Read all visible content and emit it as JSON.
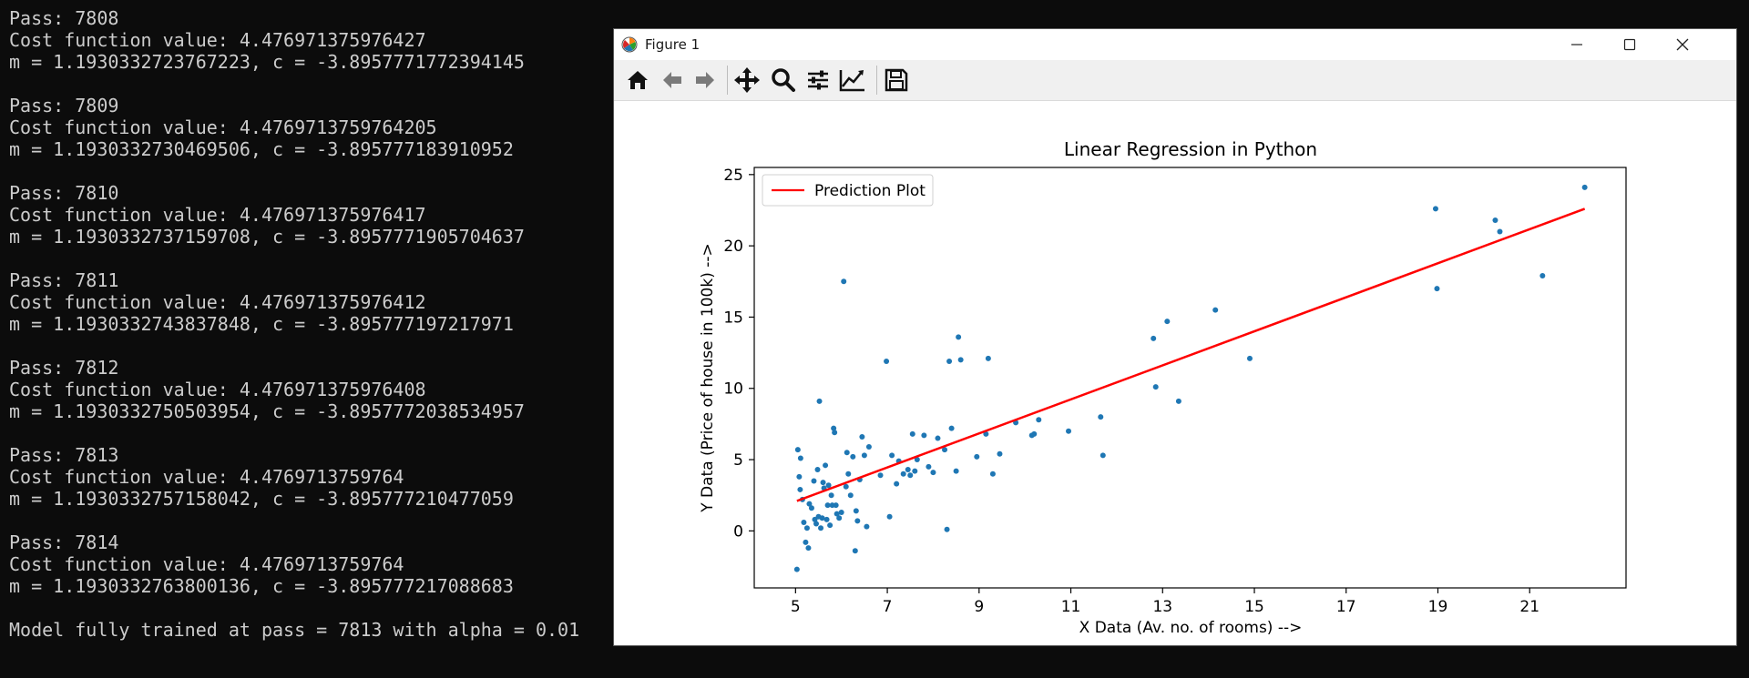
{
  "terminal": {
    "blocks": [
      {
        "pass": "Pass: 7808",
        "cost": "Cost function value: 4.476971375976427",
        "params": "m = 1.1930332723767223, c = -3.8957771772394145"
      },
      {
        "pass": "Pass: 7809",
        "cost": "Cost function value: 4.4769713759764205",
        "params": "m = 1.1930332730469506, c = -3.895777183910952"
      },
      {
        "pass": "Pass: 7810",
        "cost": "Cost function value: 4.476971375976417",
        "params": "m = 1.1930332737159708, c = -3.8957771905704637"
      },
      {
        "pass": "Pass: 7811",
        "cost": "Cost function value: 4.476971375976412",
        "params": "m = 1.1930332743837848, c = -3.895777197217971"
      },
      {
        "pass": "Pass: 7812",
        "cost": "Cost function value: 4.476971375976408",
        "params": "m = 1.1930332750503954, c = -3.8957772038534957"
      },
      {
        "pass": "Pass: 7813",
        "cost": "Cost function value: 4.4769713759764",
        "params": "m = 1.1930332757158042, c = -3.895777210477059"
      },
      {
        "pass": "Pass: 7814",
        "cost": "Cost function value: 4.4769713759764",
        "params": "m = 1.1930332763800136, c = -3.895777217088683"
      }
    ],
    "final_message": "Model fully trained at pass = 7813 with alpha = 0.01"
  },
  "window": {
    "title": "Figure 1",
    "icons": {
      "app": "matplotlib-icon",
      "minimize": "minimize-icon",
      "maximize": "maximize-icon",
      "close": "close-icon"
    }
  },
  "toolbar": {
    "buttons": [
      "home-icon",
      "back-arrow-icon",
      "forward-arrow-icon",
      "pan-move-icon",
      "zoom-magnifier-icon",
      "subplots-config-icon",
      "edit-axis-icon",
      "save-floppy-icon"
    ]
  },
  "chart_data": {
    "type": "scatter",
    "title": "Linear Regression in Python",
    "xlabel": "X Data (Av. no. of rooms) -->",
    "ylabel": "Y Data (Price of house in 100k) -->",
    "xlim": [
      4.1,
      23.1
    ],
    "ylim": [
      -4,
      25.5
    ],
    "xticks": [
      5,
      7,
      9,
      11,
      13,
      15,
      17,
      19,
      21
    ],
    "yticks": [
      0,
      5,
      10,
      15,
      20,
      25
    ],
    "legend": {
      "position": "top-left",
      "entries": [
        "Prediction Plot"
      ]
    },
    "grid": false,
    "series": [
      {
        "kind": "line",
        "name": "Prediction Plot",
        "color": "#ff0000",
        "x": [
          5.03,
          22.2
        ],
        "y": [
          2.1,
          22.6
        ]
      },
      {
        "kind": "scatter",
        "color": "#1f77b4",
        "x": [
          5.03,
          5.05,
          5.08,
          5.1,
          5.11,
          5.15,
          5.18,
          5.22,
          5.25,
          5.28,
          5.3,
          5.35,
          5.4,
          5.42,
          5.45,
          5.48,
          5.5,
          5.52,
          5.55,
          5.58,
          5.6,
          5.62,
          5.65,
          5.68,
          5.7,
          5.72,
          5.75,
          5.78,
          5.8,
          5.83,
          5.85,
          5.88,
          5.9,
          5.95,
          6.0,
          6.05,
          6.1,
          6.15,
          6.2,
          6.25,
          6.3,
          6.32,
          6.35,
          6.4,
          6.45,
          6.5,
          6.55,
          6.6,
          6.12,
          6.85,
          6.98,
          7.05,
          7.1,
          7.2,
          7.25,
          7.35,
          7.45,
          7.5,
          7.55,
          7.6,
          7.65,
          7.8,
          7.9,
          8.0,
          8.1,
          8.25,
          8.3,
          8.35,
          8.4,
          8.5,
          8.55,
          8.6,
          8.95,
          9.15,
          9.2,
          9.3,
          9.45,
          9.8,
          10.15,
          10.2,
          10.3,
          10.95,
          11.65,
          11.7,
          12.8,
          12.85,
          13.1,
          13.35,
          14.15,
          14.9,
          18.95,
          18.98,
          20.25,
          20.35,
          21.28,
          22.2
        ],
        "y": [
          -2.7,
          5.7,
          3.8,
          2.9,
          5.1,
          2.2,
          0.6,
          -0.8,
          0.2,
          -1.2,
          1.9,
          1.6,
          3.5,
          0.8,
          0.5,
          4.3,
          1.0,
          9.1,
          0.2,
          0.9,
          3.4,
          3.0,
          4.6,
          0.8,
          1.8,
          3.2,
          0.4,
          2.5,
          1.8,
          7.2,
          6.9,
          1.8,
          1.2,
          0.9,
          1.3,
          17.5,
          3.1,
          4.0,
          2.5,
          5.2,
          -1.4,
          1.4,
          0.7,
          3.6,
          6.6,
          5.3,
          0.3,
          5.9,
          5.5,
          3.9,
          11.9,
          1.0,
          5.3,
          3.3,
          4.9,
          4.0,
          4.3,
          3.9,
          6.8,
          4.2,
          5.0,
          6.7,
          4.5,
          4.1,
          6.5,
          5.7,
          0.1,
          11.9,
          7.2,
          4.2,
          13.6,
          12.0,
          5.2,
          6.8,
          12.1,
          4.0,
          5.4,
          7.6,
          6.7,
          6.8,
          7.8,
          7.0,
          8.0,
          5.3,
          13.5,
          10.1,
          14.7,
          9.1,
          15.5,
          12.1,
          22.6,
          17.0,
          21.8,
          21.0,
          17.9,
          24.1
        ]
      }
    ]
  }
}
